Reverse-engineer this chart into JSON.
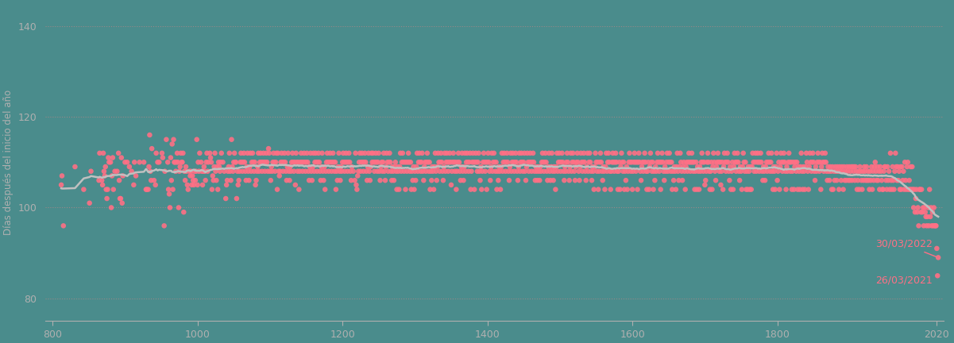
{
  "background_color": "#4a8c8c",
  "scatter_color": "#ff7085",
  "scatter_alpha": 0.9,
  "scatter_size": 22,
  "moving_avg_color": "#c0c0c0",
  "moving_avg_linewidth": 1.8,
  "ylabel": "Días después del inicio del año",
  "ylabel_color": "#b0b0b0",
  "ylabel_fontsize": 8.5,
  "tick_color": "#b0b0b0",
  "tick_fontsize": 9,
  "xlim": [
    790,
    2030
  ],
  "ylim": [
    75,
    145
  ],
  "yticks": [
    80,
    100,
    120,
    140
  ],
  "xticks": [
    800,
    1000,
    1200,
    1400,
    1600,
    1800,
    2020
  ],
  "grid_color": "#cc8888",
  "grid_alpha": 0.6,
  "grid_linestyle": ":",
  "annotation_2022_label": "30/03/2022",
  "annotation_2021_label": "26/03/2021",
  "annotation_year_2022": 2022,
  "annotation_value_2022": 89,
  "annotation_year_2021": 2021,
  "annotation_value_2021": 85,
  "annotation_color": "#ff7085",
  "annotation_fontsize": 9,
  "spine_color": "#b0b0b0",
  "moving_avg_window": 30
}
